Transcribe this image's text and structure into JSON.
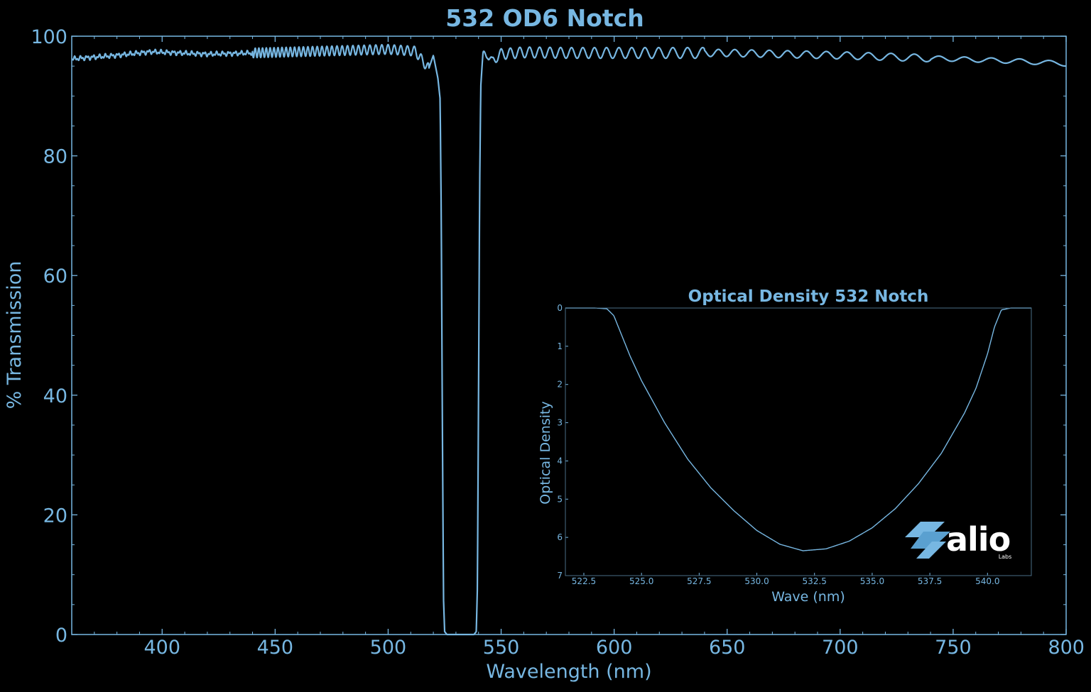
{
  "colors": {
    "background": "#000000",
    "accent": "#77b7e2",
    "logo": "#ffffff"
  },
  "logo": {
    "text": "alio",
    "subtext": "Labs"
  },
  "chart_data": [
    {
      "type": "line",
      "title": "532 OD6 Notch",
      "xlabel": "Wavelength (nm)",
      "ylabel": "% Transmission",
      "xlim": [
        360,
        800
      ],
      "ylim": [
        0,
        100
      ],
      "xticks": [
        400,
        450,
        500,
        550,
        600,
        650,
        700,
        750,
        800
      ],
      "yticks": [
        0,
        20,
        40,
        60,
        80,
        100
      ],
      "grid": false,
      "series": [
        {
          "x": [
            360,
            380,
            395,
            420,
            450,
            480,
            500,
            512,
            516,
            518,
            520,
            522,
            523,
            523.5,
            524,
            524.5,
            525,
            526,
            528,
            532,
            536,
            538,
            539,
            539.5,
            540,
            540.5,
            541,
            542,
            544,
            546,
            548,
            550,
            560,
            580,
            600,
            650,
            700,
            750,
            780,
            800
          ],
          "y": [
            96.2,
            96.8,
            97.4,
            97.0,
            97.3,
            97.6,
            97.8,
            97.5,
            95.5,
            94.6,
            96.8,
            93.0,
            89.5,
            70.0,
            35.0,
            6.0,
            0.5,
            0,
            0,
            0,
            0,
            0,
            0.5,
            8.0,
            40.0,
            75.0,
            92.0,
            96.5,
            97.2,
            95.5,
            96.6,
            97.0,
            97.3,
            97.2,
            97.2,
            97.2,
            96.8,
            96.2,
            95.8,
            95.4
          ],
          "ripple": [
            {
              "from": 440,
              "to": 518,
              "amplitude": 0.8
            },
            {
              "from": 541,
              "to": 640,
              "amplitude": 0.9
            },
            {
              "from": 640,
              "to": 740,
              "amplitude": 0.6
            },
            {
              "from": 740,
              "to": 800,
              "amplitude": 0.4
            }
          ]
        }
      ]
    },
    {
      "type": "line",
      "title": "Optical Density 532 Notch",
      "xlabel": "Wave (nm)",
      "ylabel": "Optical Density",
      "xlim": [
        521.7,
        541.9
      ],
      "ylim": [
        7,
        0
      ],
      "xticks": [
        522.5,
        525.0,
        527.5,
        530.0,
        532.5,
        535.0,
        537.5,
        540.0
      ],
      "xtick_labels": [
        "522.5",
        "525.0",
        "527.5",
        "530.0",
        "532.5",
        "535.0",
        "537.5",
        "540.0"
      ],
      "yticks": [
        0,
        1,
        2,
        3,
        4,
        5,
        6,
        7
      ],
      "grid": false,
      "series": [
        {
          "x": [
            521.7,
            523.0,
            523.5,
            523.8,
            524.0,
            524.5,
            525.0,
            526.0,
            527.0,
            528.0,
            529.0,
            530.0,
            531.0,
            532.0,
            533.0,
            534.0,
            535.0,
            536.0,
            537.0,
            538.0,
            539.0,
            539.5,
            540.0,
            540.3,
            540.6,
            541.0,
            541.9
          ],
          "y": [
            0,
            0,
            0.02,
            0.2,
            0.5,
            1.25,
            1.9,
            3.0,
            3.95,
            4.7,
            5.3,
            5.82,
            6.18,
            6.35,
            6.3,
            6.1,
            5.75,
            5.25,
            4.6,
            3.8,
            2.75,
            2.1,
            1.2,
            0.5,
            0.05,
            0,
            0
          ]
        }
      ]
    }
  ]
}
